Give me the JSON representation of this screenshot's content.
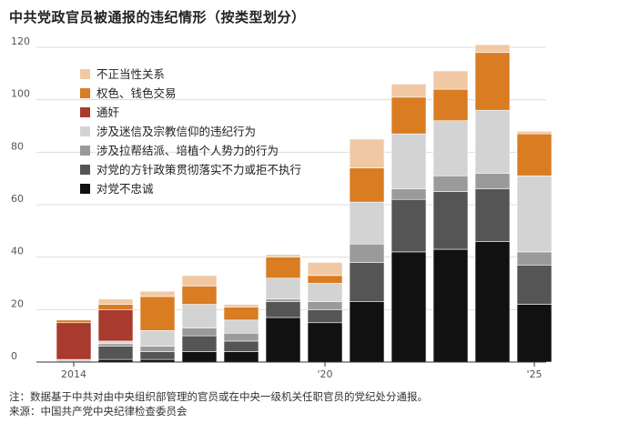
{
  "chart_data": {
    "type": "bar",
    "stacked": true,
    "title": "中共党政官员被通报的违纪情形（按类型划分）",
    "categories": [
      "2014",
      "2015",
      "2016",
      "2017",
      "2018",
      "2019",
      "2020",
      "2021",
      "2022",
      "2023",
      "2024",
      "2025"
    ],
    "x_tick_labels": [
      {
        "index": 0,
        "label": "2014"
      },
      {
        "index": 6,
        "label": "'20"
      },
      {
        "index": 11,
        "label": "'25"
      }
    ],
    "ylim": [
      0,
      120
    ],
    "yticks": [
      0,
      20,
      40,
      60,
      80,
      100,
      120
    ],
    "grid": true,
    "legend_position": "top-left",
    "series": [
      {
        "name": "对党不忠诚",
        "color": "#111111",
        "values": [
          0,
          1,
          1,
          4,
          4,
          17,
          15,
          23,
          42,
          43,
          46,
          22
        ]
      },
      {
        "name": "对党的方针政策贯彻落实不力或拒不执行",
        "color": "#555555",
        "values": [
          0,
          5,
          3,
          6,
          4,
          6,
          5,
          15,
          20,
          22,
          20,
          15
        ]
      },
      {
        "name": "涉及拉帮结派、培植个人势力的行为",
        "color": "#9a9a9a",
        "values": [
          0,
          1,
          2,
          3,
          3,
          1,
          3,
          7,
          4,
          6,
          6,
          5
        ]
      },
      {
        "name": "涉及迷信及宗教信仰的违纪行为",
        "color": "#d3d3d3",
        "values": [
          1,
          1,
          6,
          9,
          5,
          8,
          7,
          16,
          21,
          21,
          24,
          29
        ]
      },
      {
        "name": "通奸",
        "color": "#a83a2e",
        "values": [
          14,
          12,
          0,
          0,
          0,
          0,
          0,
          0,
          0,
          0,
          0,
          0
        ]
      },
      {
        "name": "权色、钱色交易",
        "color": "#d97c22",
        "values": [
          1,
          2,
          13,
          7,
          5,
          8,
          3,
          13,
          14,
          12,
          22,
          16
        ]
      },
      {
        "name": "不正当性关系",
        "color": "#f0c9a4",
        "values": [
          0,
          2,
          2,
          4,
          1,
          1,
          5,
          11,
          5,
          7,
          3,
          1
        ]
      }
    ],
    "legend_order": [
      "不正当性关系",
      "权色、钱色交易",
      "通奸",
      "涉及迷信及宗教信仰的违纪行为",
      "涉及拉帮结派、培植个人势力的行为",
      "对党的方针政策贯彻落实不力或拒不执行",
      "对党不忠诚"
    ]
  },
  "notes": {
    "note": "注：数据基于中共对由中央组织部管理的官员或在中央一级机关任职官员的党纪处分通报。",
    "source": "来源：中国共产党中央纪律检查委员会"
  }
}
